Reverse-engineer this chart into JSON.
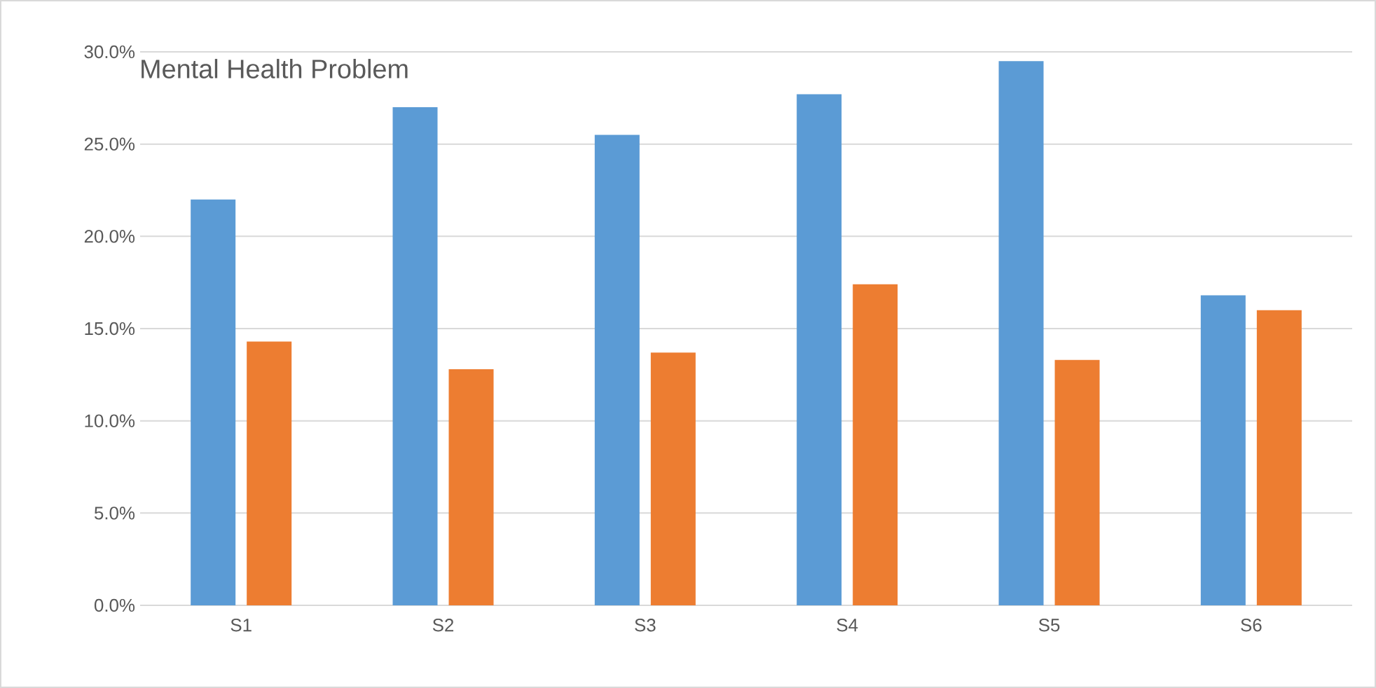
{
  "chart_data": {
    "type": "bar",
    "title": "Mental Health Problem",
    "categories": [
      "S1",
      "S2",
      "S3",
      "S4",
      "S5",
      "S6"
    ],
    "series": [
      {
        "color": "#5b9bd5",
        "values": [
          22.0,
          27.0,
          25.5,
          27.7,
          29.5,
          16.8
        ]
      },
      {
        "color": "#ed7d31",
        "values": [
          14.3,
          12.8,
          13.7,
          17.4,
          13.3,
          16.0
        ]
      }
    ],
    "ylim": [
      0,
      30
    ],
    "yticks": [
      {
        "value": 0,
        "label": "0.0%"
      },
      {
        "value": 5,
        "label": "5.0%"
      },
      {
        "value": 10,
        "label": "10.0%"
      },
      {
        "value": 15,
        "label": "15.0%"
      },
      {
        "value": 20,
        "label": "20.0%"
      },
      {
        "value": 25,
        "label": "25.0%"
      },
      {
        "value": 30,
        "label": "30.0%"
      }
    ],
    "grid": "y"
  }
}
